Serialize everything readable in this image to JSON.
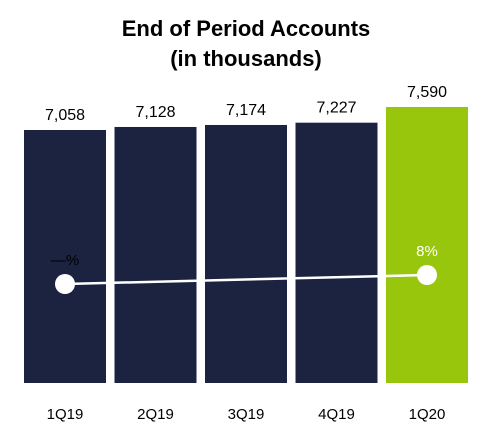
{
  "chart_data": {
    "type": "bar",
    "title_line1": "End of Period Accounts",
    "title_line2": "(in thousands)",
    "categories": [
      "1Q19",
      "2Q19",
      "3Q19",
      "4Q19",
      "1Q20"
    ],
    "series": [
      {
        "values": [
          7058,
          7128,
          7174,
          7227,
          7590
        ]
      }
    ],
    "value_labels": [
      "7,058",
      "7,128",
      "7,174",
      "7,227",
      "7,590"
    ],
    "growth_line": {
      "points": [
        0,
        8
      ],
      "points_at_categories": [
        "1Q19",
        "1Q20"
      ],
      "labels": [
        "—%",
        "8%"
      ]
    },
    "colors": {
      "bar": "#1b2340",
      "highlight_bar": "#98c60c",
      "line": "#ffffff",
      "text": "#000000"
    },
    "highlight_index": 4,
    "legend": "none",
    "grid": false
  }
}
